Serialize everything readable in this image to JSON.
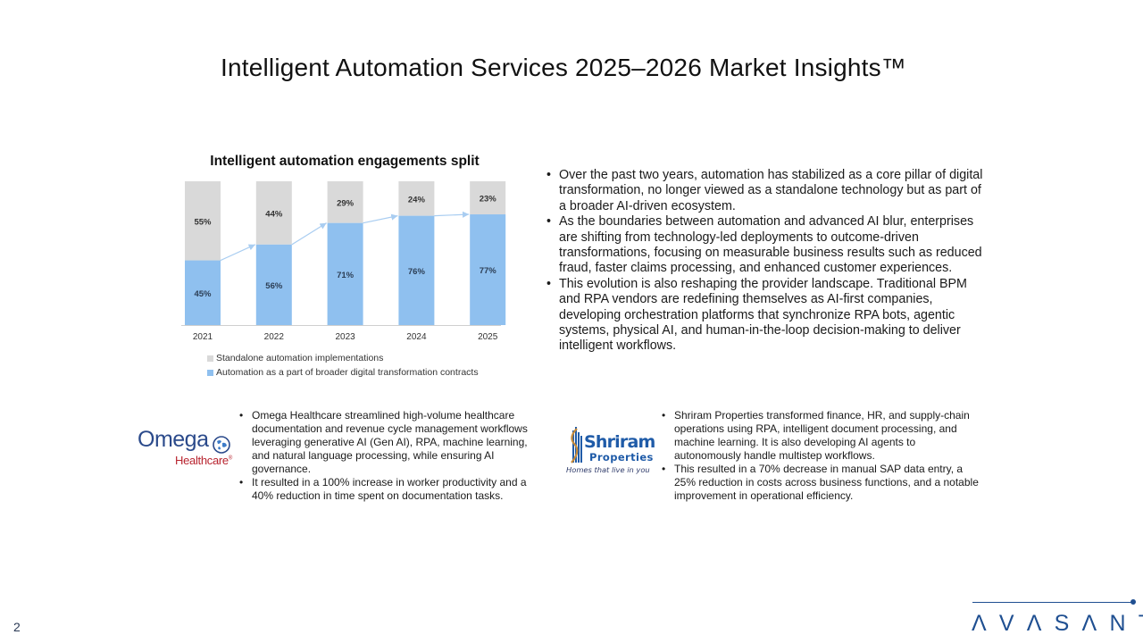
{
  "page": {
    "title": "Intelligent Automation Services 2025–2026 Market Insights™",
    "page_number": "2"
  },
  "colors": {
    "standalone": "#d9d9d9",
    "broader": "#8fc0ef",
    "trend_arrow": "#a9cdf1",
    "omega_blue": "#2b4a8b",
    "omega_red": "#b8242f",
    "shriram_blue": "#1f5ba8",
    "avasant_blue": "#1f4f91"
  },
  "chart_data": {
    "type": "bar",
    "stacked": true,
    "percent": true,
    "title": "Intelligent automation engagements split",
    "categories": [
      "2021",
      "2022",
      "2023",
      "2024",
      "2025"
    ],
    "series": [
      {
        "name": "Automation as a part of broader digital transformation contracts",
        "values": [
          45,
          56,
          71,
          76,
          77
        ],
        "labels": [
          "45%",
          "56%",
          "71%",
          "76%",
          "77%"
        ]
      },
      {
        "name": "Standalone automation implementations",
        "values": [
          55,
          44,
          29,
          24,
          23
        ],
        "labels": [
          "55%",
          "44%",
          "29%",
          "24%",
          "23%"
        ]
      }
    ],
    "ylim": [
      0,
      100
    ],
    "xlabel": "",
    "ylabel": "",
    "grid": false,
    "legend": "bottom-left",
    "legend_entries": [
      "Standalone automation implementations",
      "Automation as a part of broader digital transformation contracts"
    ],
    "annotations": [
      "trend arrows connecting tops of broader-contract segments"
    ]
  },
  "insights": [
    "Over the past two years, automation has stabilized as a core pillar of digital transformation, no longer viewed as a standalone technology but as part of a broader AI-driven ecosystem.",
    "As the boundaries between automation and advanced AI blur, enterprises are shifting from technology-led deployments to outcome-driven transformations, focusing on measurable business results such as reduced fraud, faster claims processing, and enhanced customer experiences.",
    "This evolution is also reshaping the provider landscape. Traditional BPM and RPA vendors are redefining themselves as AI-first companies, developing orchestration platforms that synchronize RPA bots, agentic systems, physical AI, and human-in-the-loop decision-making to deliver intelligent workflows."
  ],
  "case_studies": {
    "omega": {
      "logo_word": "Omega",
      "logo_sub": "Healthcare",
      "logo_mark": "®",
      "bullets": [
        "Omega Healthcare streamlined high-volume healthcare documentation and revenue cycle management workflows leveraging generative AI (Gen AI), RPA, machine learning, and natural language processing, while ensuring AI governance.",
        "It resulted in a 100% increase in worker productivity and a 40% reduction in time spent on documentation tasks."
      ]
    },
    "shriram": {
      "logo_word": "Shriram",
      "logo_sub": "Properties",
      "logo_tagline": "Homes that live in you",
      "bullets": [
        "Shriram Properties transformed finance, HR, and supply-chain operations using RPA, intelligent document processing, and machine learning. It is also developing AI agents to autonomously handle multistep workflows.",
        "This resulted in a 70% decrease in manual SAP data entry, a 25% reduction in costs across business functions, and a notable improvement in operational efficiency."
      ]
    }
  },
  "footer": {
    "brand": "AVASANT"
  }
}
